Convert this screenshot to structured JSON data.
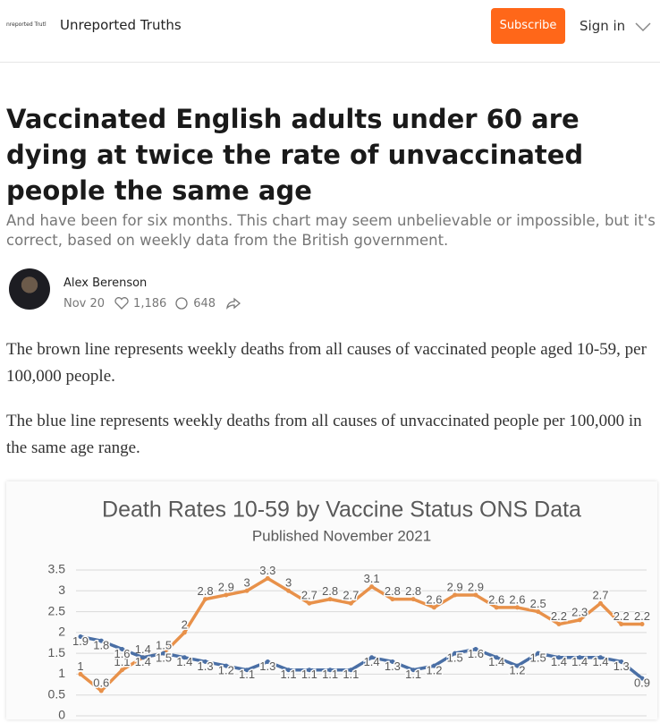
{
  "header": {
    "logo_text": "nreported Trutl",
    "publication": "Unreported Truths",
    "subscribe": "Subscribe",
    "sign_in": "Sign in"
  },
  "article": {
    "title": "Vaccinated English adults under 60 are dying at twice the rate of unvaccinated people the same age",
    "subtitle": "And have been for six months. This chart may seem unbelievable or impossible, but it's correct, based on weekly data from the British government.",
    "author": "Alex Berenson",
    "date": "Nov 20",
    "likes": "1,186",
    "comments": "648",
    "paragraphs": [
      "The brown line represents weekly deaths from all causes of vaccinated people aged 10-59, per 100,000 people.",
      "The blue line represents weekly deaths from all causes of unvaccinated people per 100,000 in the same age range."
    ]
  },
  "chart_data": {
    "type": "line",
    "title": "Death Rates 10-59  by Vaccine Status ONS Data",
    "subtitle": "Published November 2021",
    "categories": [
      null,
      null,
      null,
      null,
      null,
      null,
      null,
      null,
      null,
      null,
      null,
      null,
      null,
      null,
      null,
      null,
      null,
      null,
      null,
      null,
      null,
      null,
      null,
      null,
      null,
      null,
      null,
      null
    ],
    "series": [
      {
        "color": "#e8914a",
        "values": [
          1,
          0.6,
          1.1,
          1.4,
          1.5,
          2,
          2.8,
          2.9,
          3,
          3.3,
          3,
          2.7,
          2.8,
          2.7,
          3.1,
          2.8,
          2.8,
          2.6,
          2.9,
          2.9,
          2.6,
          2.6,
          2.5,
          2.2,
          2.3,
          2.7,
          2.2,
          2.2
        ]
      },
      {
        "color": "#4a6fa5",
        "values": [
          1.9,
          1.8,
          1.6,
          1.4,
          1.5,
          1.4,
          1.3,
          1.2,
          1.1,
          1.3,
          1.1,
          1.1,
          1.1,
          1.1,
          1.4,
          1.3,
          1.1,
          1.2,
          1.5,
          1.6,
          1.4,
          1.2,
          1.5,
          1.4,
          1.4,
          1.4,
          1.3,
          0.9
        ]
      }
    ],
    "ylim": [
      0,
      3.5
    ],
    "yticks": [
      0,
      0.5,
      1,
      1.5,
      2,
      2.5,
      3,
      3.5
    ],
    "grid": true,
    "data_labels": true
  }
}
